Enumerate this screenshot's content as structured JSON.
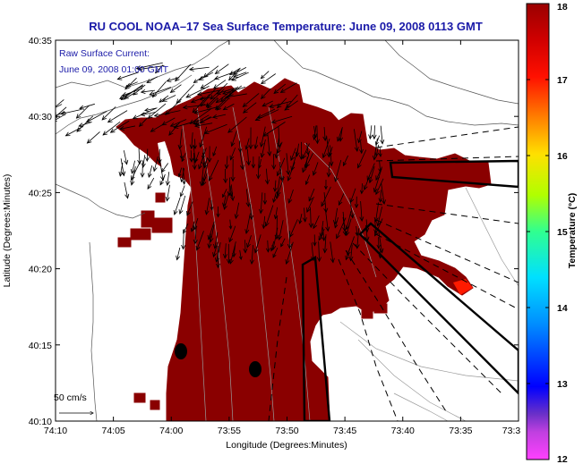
{
  "title": "RU COOL  NOAA–17  Sea Surface Temperature:  June 09, 2008 0113 GMT",
  "current_note": {
    "line1": "Raw Surface Current:",
    "line2": "June 09, 2008 01:00 GMT"
  },
  "scale_label": "50 cm/s",
  "x_axis": {
    "label": "Longitude (Degrees:Minutes)",
    "ticks": [
      "74:10",
      "74:05",
      "74:00",
      "73:55",
      "73:50",
      "73:45",
      "73:40",
      "73:35",
      "73:3"
    ]
  },
  "y_axis": {
    "label": "Latitude (Degrees:Minutes)",
    "ticks": [
      "40:35",
      "40:30",
      "40:25",
      "40:20",
      "40:15",
      "40:10"
    ]
  },
  "colorbar": {
    "label": "Temperature (°C)",
    "ticks": [
      "18",
      "17",
      "16",
      "15",
      "14",
      "13",
      "12"
    ],
    "range": [
      12,
      18
    ],
    "colors": [
      "#ff40ff",
      "#6a30c8",
      "#0000ff",
      "#00c8ff",
      "#30ff90",
      "#b0ff00",
      "#ffe000",
      "#ff8000",
      "#ff0000",
      "#9a0000"
    ]
  },
  "colors": {
    "sst_fill": "#8a0000",
    "title": "#1a1aa8",
    "land": "#ffffff"
  }
}
